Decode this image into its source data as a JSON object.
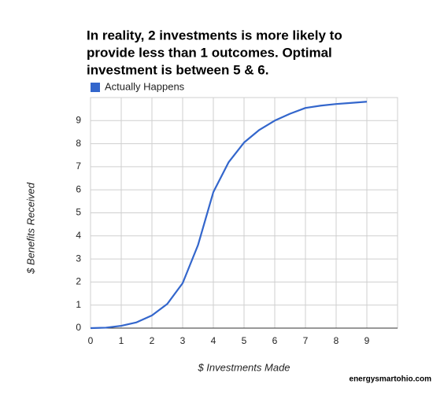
{
  "chart_data": {
    "type": "line",
    "title": [
      "In reality, 2 investments is more likely to",
      "provide less than 1 outcomes. Optimal",
      "investment is between 5 & 6."
    ],
    "x_label": "$ Investments Made",
    "y_label": "$ Benefits Received",
    "annotation": "energysmartohio.com",
    "x": [
      0,
      0.5,
      1,
      1.5,
      2,
      2.5,
      3,
      3.5,
      4,
      4.5,
      5,
      5.5,
      6,
      6.5,
      7,
      7.5,
      8,
      8.5,
      9
    ],
    "series": [
      {
        "name": "Actually Happens",
        "color": "#3366cc",
        "values": [
          0,
          0.02,
          0.1,
          0.25,
          0.55,
          1.05,
          1.95,
          3.6,
          5.9,
          7.2,
          8.05,
          8.6,
          9.0,
          9.3,
          9.55,
          9.65,
          9.72,
          9.77,
          9.82
        ]
      }
    ],
    "xlim": [
      0,
      10
    ],
    "ylim": [
      0,
      10
    ],
    "xticks": [
      0,
      1,
      2,
      3,
      4,
      5,
      6,
      7,
      8,
      9
    ],
    "yticks": [
      0,
      1,
      2,
      3,
      4,
      5,
      6,
      7,
      8,
      9
    ],
    "grid": true,
    "legend": "top-left"
  }
}
